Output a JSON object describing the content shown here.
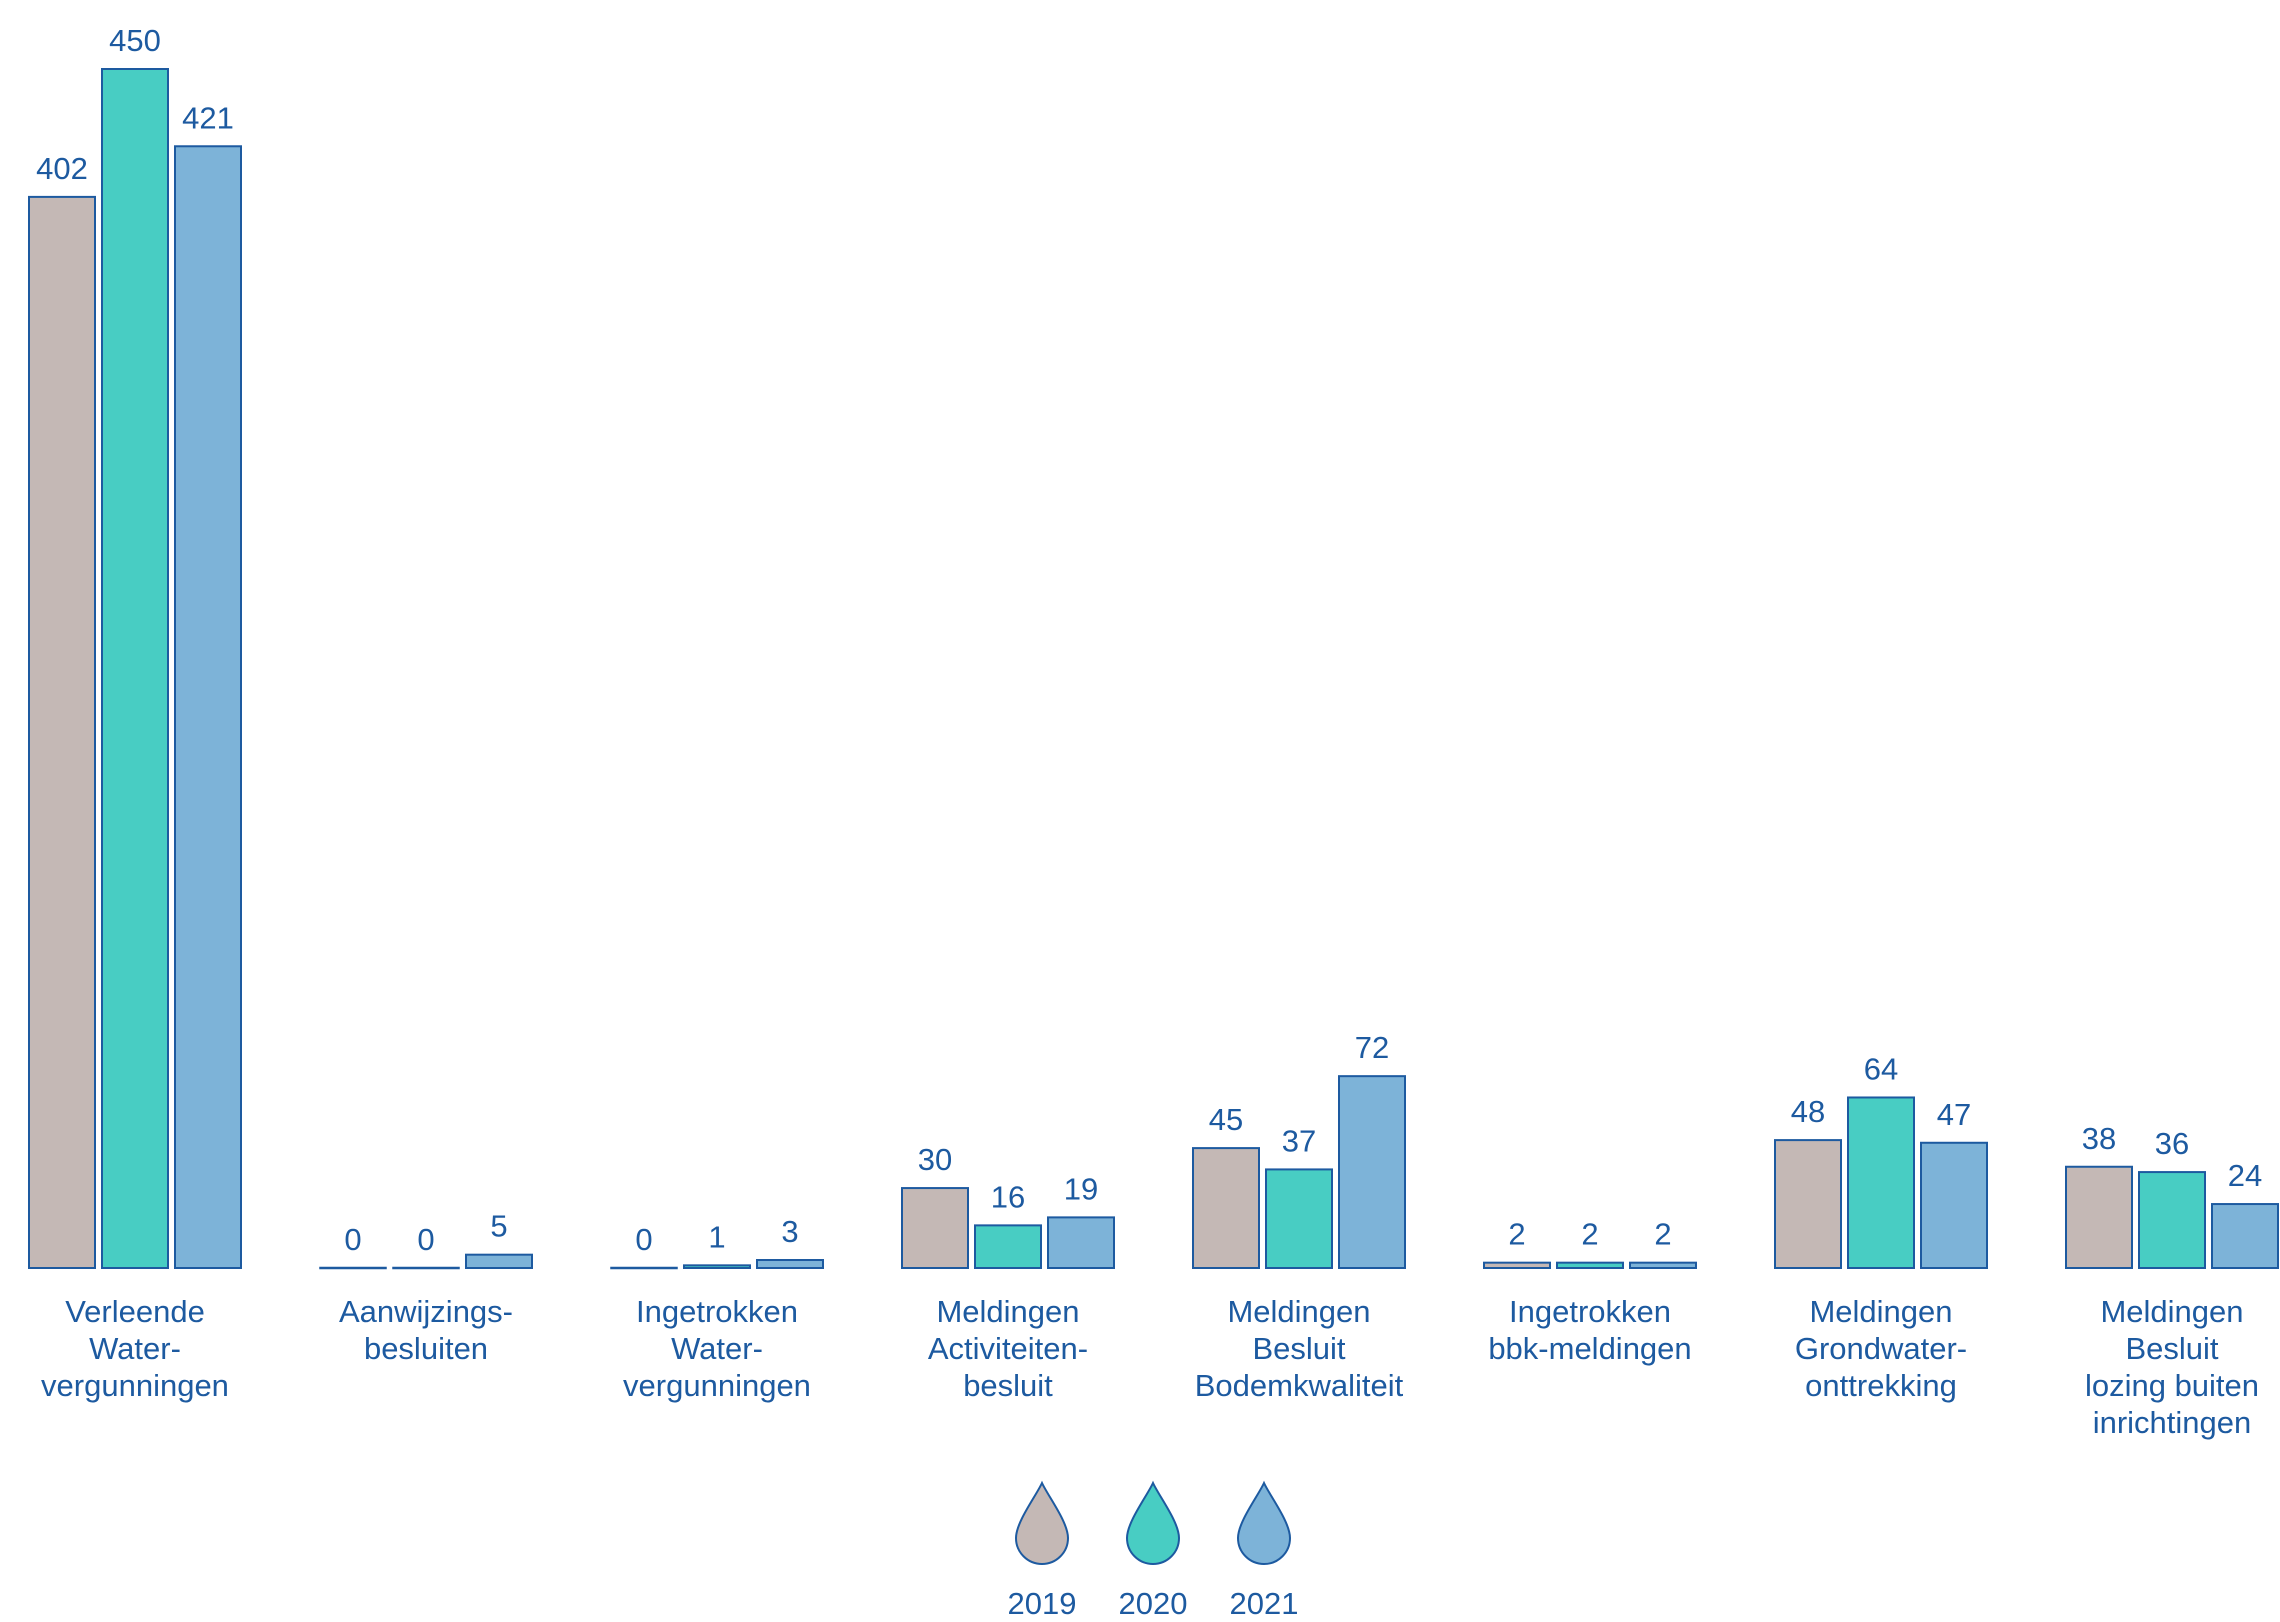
{
  "chart_data": {
    "type": "bar",
    "categories": [
      [
        "Verleende",
        "Water-",
        "vergunningen"
      ],
      [
        "Aanwijzings-",
        "besluiten"
      ],
      [
        "Ingetrokken",
        "Water-",
        "vergunningen"
      ],
      [
        "Meldingen",
        "Activiteiten-",
        "besluit"
      ],
      [
        "Meldingen",
        "Besluit",
        "Bodemkwaliteit"
      ],
      [
        "Ingetrokken",
        "bbk-meldingen"
      ],
      [
        "Meldingen",
        "Grondwater-",
        "onttrekking"
      ],
      [
        "Meldingen",
        "Besluit",
        "lozing buiten",
        "inrichtingen"
      ]
    ],
    "series": [
      {
        "name": "2019",
        "color": "#c4b8b5",
        "values": [
          402,
          0,
          0,
          30,
          45,
          2,
          48,
          38
        ]
      },
      {
        "name": "2020",
        "color": "#48cdc3",
        "values": [
          450,
          0,
          1,
          16,
          37,
          2,
          64,
          36
        ]
      },
      {
        "name": "2021",
        "color": "#7db3d8",
        "values": [
          421,
          5,
          3,
          19,
          72,
          2,
          47,
          24
        ]
      }
    ],
    "bar_outline_color": "#1d5aa0",
    "text_color": "#1d5aa0",
    "ylim": [
      0,
      450
    ],
    "grid": false,
    "legend": {
      "placement": "bottom-center",
      "icon": "drop-icon"
    }
  }
}
